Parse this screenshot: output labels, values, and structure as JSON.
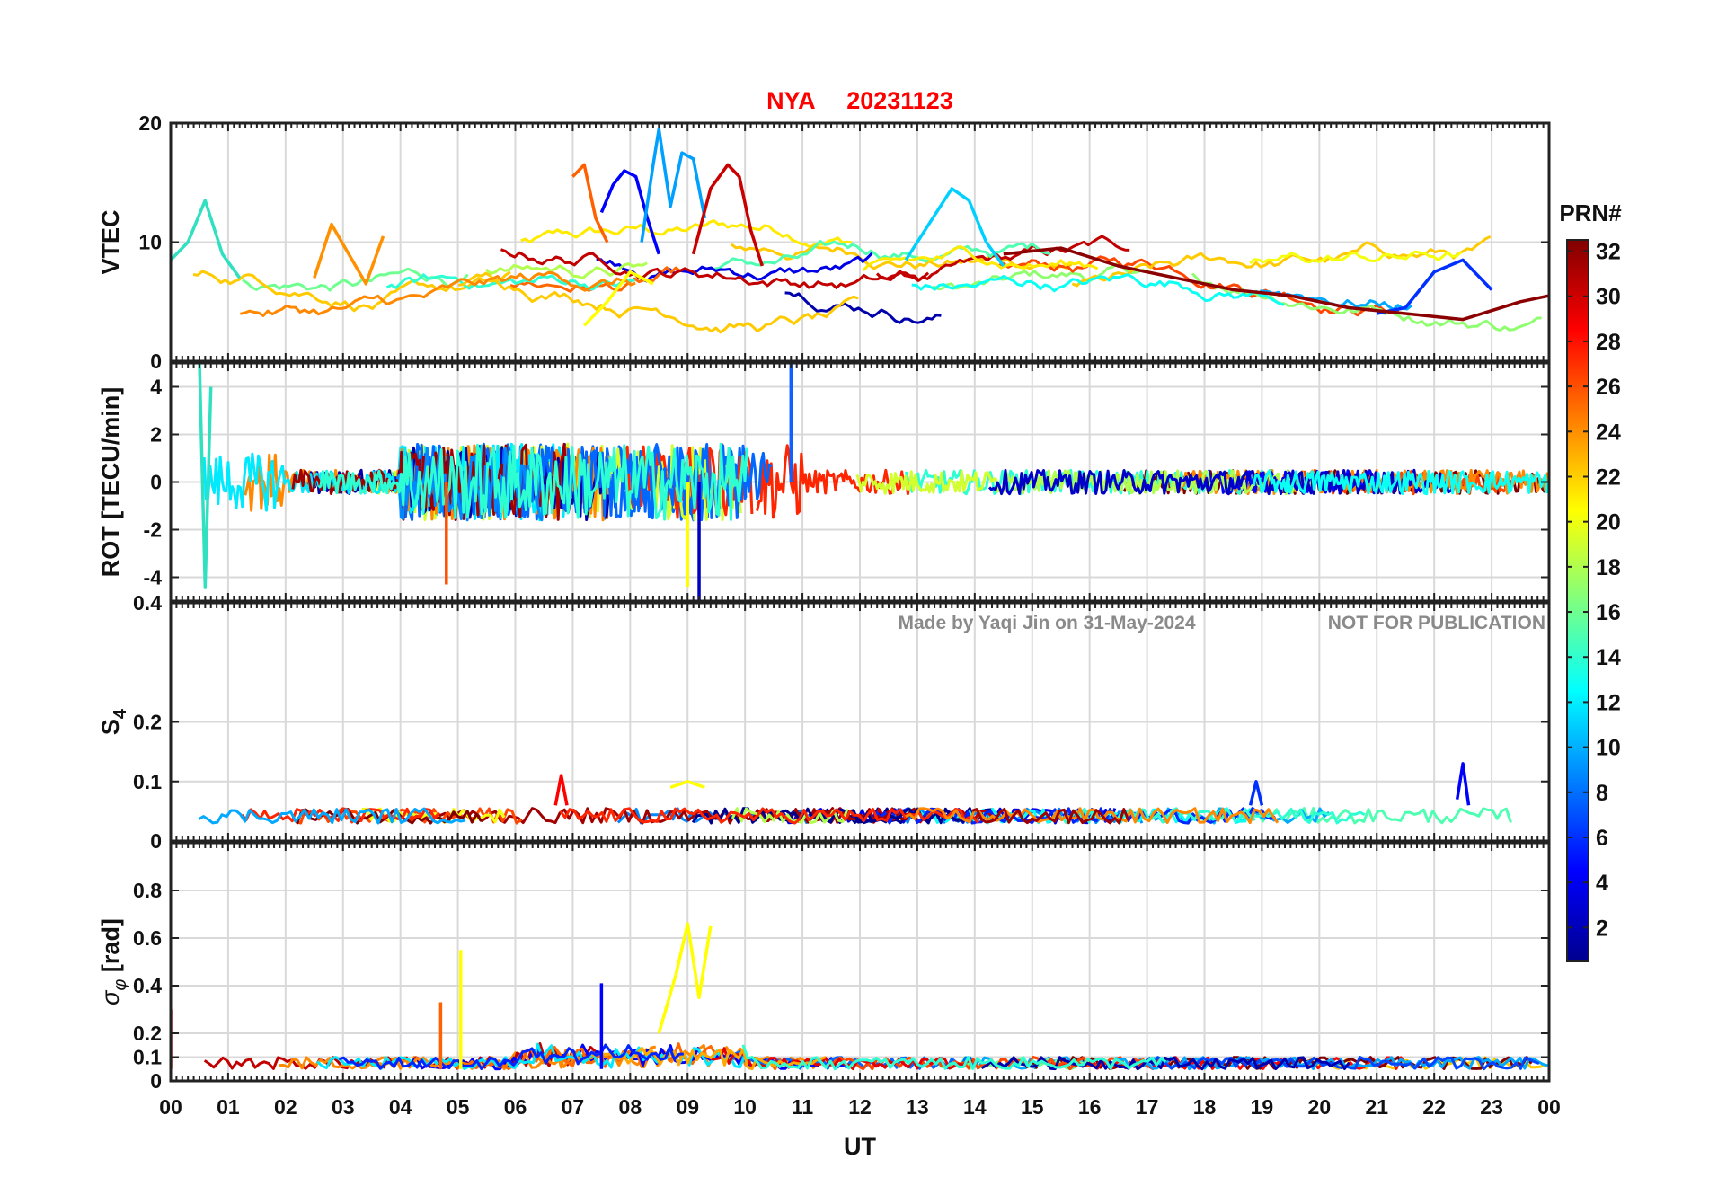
{
  "figure": {
    "title_station": "NYA",
    "title_date": "20231123",
    "xlabel": "UT",
    "watermark_author": "Made by Yaqi Jin on 31-May-2024",
    "watermark_notice": "NOT FOR PUBLICATION",
    "colorbar_label": "PRN#",
    "title_color": "#ff0000"
  },
  "chart_data": [
    {
      "type": "line",
      "title": "NYA   20231123",
      "ylabel": "VTEC",
      "xlabel": "UT",
      "xlim": [
        0,
        24
      ],
      "ylim": [
        0,
        20
      ],
      "yticks": [
        0,
        10,
        20
      ],
      "ytick_labels": [
        "0",
        "10",
        "20"
      ],
      "grid": true,
      "series": [
        {
          "name": "PRN 5",
          "color": "#0000ff",
          "x": [
            7.5,
            7.7,
            7.9,
            8.1,
            8.3,
            8.5
          ],
          "values": [
            12.5,
            14.8,
            16.0,
            15.5,
            12.0,
            9.0
          ]
        },
        {
          "name": "PRN 10",
          "color": "#00a0ff",
          "x": [
            8.2,
            8.4,
            8.5,
            8.7,
            8.9,
            9.1,
            9.3
          ],
          "values": [
            10.0,
            16.5,
            19.5,
            13.0,
            17.5,
            17.0,
            12.0
          ]
        },
        {
          "name": "PRN 30",
          "color": "#c80000",
          "x": [
            9.1,
            9.4,
            9.7,
            9.9,
            10.1,
            10.3
          ],
          "values": [
            9.0,
            14.5,
            16.5,
            15.5,
            11.0,
            8.0
          ]
        },
        {
          "name": "PRN 25",
          "color": "#ff6000",
          "x": [
            7.0,
            7.2,
            7.4,
            7.6
          ],
          "values": [
            15.5,
            16.5,
            12.0,
            10.0
          ]
        },
        {
          "name": "PRN 12",
          "color": "#00d0ff",
          "x": [
            12.8,
            13.2,
            13.6,
            13.9,
            14.2,
            14.5
          ],
          "values": [
            8.5,
            11.5,
            14.5,
            13.5,
            10.0,
            8.0
          ]
        },
        {
          "name": "PRN 6",
          "color": "#0030ff",
          "x": [
            21.0,
            21.5,
            22.0,
            22.5,
            23.0
          ],
          "values": [
            4.0,
            4.5,
            7.5,
            8.5,
            6.0
          ]
        },
        {
          "name": "PRN 14",
          "color": "#30e0c0",
          "x": [
            0.0,
            0.3,
            0.6,
            0.9,
            1.2
          ],
          "values": [
            8.5,
            10.0,
            13.5,
            9.0,
            7.0
          ]
        },
        {
          "name": "PRN 24",
          "color": "#ff9000",
          "x": [
            2.5,
            2.8,
            3.1,
            3.4,
            3.7
          ],
          "values": [
            7.0,
            11.5,
            9.0,
            6.5,
            10.5
          ]
        },
        {
          "name": "PRN 20",
          "color": "#ffff00",
          "x": [
            7.2,
            7.6,
            8.0,
            8.4
          ],
          "values": [
            3.0,
            5.0,
            7.5,
            6.5
          ]
        },
        {
          "name": "PRN 32",
          "color": "#8b0000",
          "x": [
            14.5,
            15.5,
            16.5,
            17.5,
            18.5,
            19.5,
            20.5,
            21.5,
            22.5,
            23.5,
            24.0
          ],
          "values": [
            9.0,
            9.5,
            8.0,
            7.0,
            6.0,
            5.5,
            4.5,
            4.0,
            3.5,
            5.0,
            5.5
          ]
        }
      ]
    },
    {
      "type": "line",
      "title": "",
      "ylabel": "ROT [TECU/min]",
      "xlabel": "UT",
      "xlim": [
        0,
        24
      ],
      "ylim": [
        -5,
        5
      ],
      "yticks": [
        -4,
        -2,
        0,
        2,
        4
      ],
      "ytick_labels": [
        "-4",
        "-2",
        "0",
        "2",
        "4"
      ],
      "grid": true,
      "series": [
        {
          "name": "PRN 14",
          "color": "#30e0c0",
          "x": [
            0.5,
            0.6,
            0.7
          ],
          "values": [
            5.0,
            -4.4,
            4.0
          ]
        },
        {
          "name": "PRN 26",
          "color": "#ff5000",
          "x": [
            4.8
          ],
          "values": [
            -4.3
          ]
        },
        {
          "name": "PRN 9",
          "color": "#1060ff",
          "x": [
            10.8
          ],
          "values": [
            5.0
          ]
        },
        {
          "name": "PRN 20",
          "color": "#ffff00",
          "x": [
            9.0
          ],
          "values": [
            -4.4
          ]
        },
        {
          "name": "PRN 3",
          "color": "#0000c0",
          "x": [
            9.2
          ],
          "values": [
            -5.0
          ]
        }
      ]
    },
    {
      "type": "line",
      "title": "",
      "ylabel": "S4",
      "xlabel": "UT",
      "xlim": [
        0,
        24
      ],
      "ylim": [
        0,
        0.4
      ],
      "yticks": [
        0,
        0.1,
        0.2,
        0.4
      ],
      "ytick_labels": [
        "0",
        "0.1",
        "0.2",
        "0.4"
      ],
      "grid": true,
      "series": [
        {
          "name": "PRN 28",
          "color": "#ff0000",
          "x": [
            6.7,
            6.8,
            6.9
          ],
          "values": [
            0.06,
            0.11,
            0.06
          ]
        },
        {
          "name": "PRN 20",
          "color": "#ffff00",
          "x": [
            8.7,
            9.0,
            9.3
          ],
          "values": [
            0.09,
            0.1,
            0.09
          ]
        },
        {
          "name": "PRN 6",
          "color": "#0030ff",
          "x": [
            18.8,
            18.9,
            19.0
          ],
          "values": [
            0.06,
            0.1,
            0.06
          ]
        },
        {
          "name": "PRN 4",
          "color": "#0000ff",
          "x": [
            22.4,
            22.5,
            22.6
          ],
          "values": [
            0.07,
            0.13,
            0.06
          ]
        }
      ]
    },
    {
      "type": "line",
      "title": "",
      "ylabel": "σφ [rad]",
      "xlabel": "UT",
      "xlim": [
        0,
        24
      ],
      "ylim": [
        0,
        1
      ],
      "yticks": [
        0,
        0.1,
        0.2,
        0.4,
        0.6,
        0.8
      ],
      "ytick_labels": [
        "0",
        "0.1",
        "0.2",
        "0.4",
        "0.6",
        "0.8"
      ],
      "grid": true,
      "series": [
        {
          "name": "PRN 20",
          "color": "#ffff00",
          "x": [
            8.5,
            8.8,
            9.0,
            9.2,
            9.4
          ],
          "values": [
            0.2,
            0.45,
            0.66,
            0.35,
            0.65
          ]
        },
        {
          "name": "PRN 19",
          "color": "#ffff00",
          "x": [
            5.05
          ],
          "values": [
            0.55
          ]
        },
        {
          "name": "PRN 26",
          "color": "#ff6000",
          "x": [
            4.7
          ],
          "values": [
            0.33
          ]
        },
        {
          "name": "PRN 3",
          "color": "#0000ff",
          "x": [
            7.5
          ],
          "values": [
            0.41
          ]
        },
        {
          "name": "PRN 29",
          "color": "#ff1000",
          "x": [
            0.0
          ],
          "values": [
            0.3
          ]
        }
      ]
    }
  ],
  "xaxis": {
    "tick_labels": [
      "00",
      "01",
      "02",
      "03",
      "04",
      "05",
      "06",
      "07",
      "08",
      "09",
      "10",
      "11",
      "12",
      "13",
      "14",
      "15",
      "16",
      "17",
      "18",
      "19",
      "20",
      "21",
      "22",
      "23",
      "00"
    ]
  },
  "colorbar": {
    "label": "PRN#",
    "range": [
      1,
      32
    ],
    "tick_labels": [
      "2",
      "4",
      "6",
      "8",
      "10",
      "12",
      "14",
      "16",
      "18",
      "20",
      "22",
      "24",
      "26",
      "28",
      "30",
      "32"
    ]
  }
}
